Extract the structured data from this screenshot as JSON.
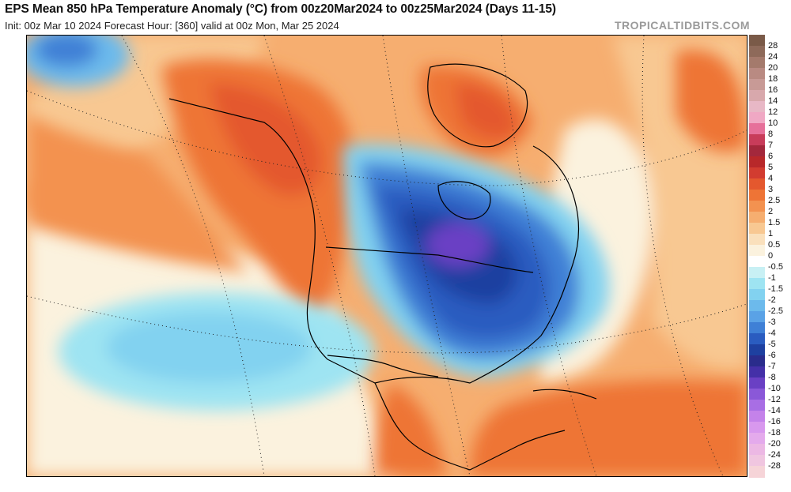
{
  "header": {
    "title": "EPS Mean 850 hPa Temperature Anomaly (°C) from 00z20Mar2024 to 00z25Mar2024 (Days 11-15)",
    "subtitle": "Init: 00z Mar 10 2024   Forecast Hour: [360]   valid at 00z Mon, Mar 25 2024",
    "brand": "TROPICALTIDBITS.COM"
  },
  "colorbar": {
    "labels": [
      "28",
      "24",
      "20",
      "18",
      "16",
      "14",
      "12",
      "10",
      "8",
      "7",
      "6",
      "5",
      "4",
      "3",
      "2.5",
      "2",
      "1.5",
      "1",
      "0.5",
      "0",
      "-0.5",
      "-1",
      "-1.5",
      "-2",
      "-2.5",
      "-3",
      "-4",
      "-5",
      "-6",
      "-7",
      "-8",
      "-10",
      "-12",
      "-14",
      "-16",
      "-18",
      "-20",
      "-24",
      "-28"
    ],
    "colors": [
      "#7a5a48",
      "#8e6a5a",
      "#a47a6c",
      "#b98a82",
      "#c89a96",
      "#d8a8ac",
      "#e8b8c6",
      "#f0a8c4",
      "#e6709a",
      "#c83c5a",
      "#a3283c",
      "#b8282a",
      "#d23c30",
      "#e4582e",
      "#ee7436",
      "#f39250",
      "#f6ae70",
      "#f8c892",
      "#fae0bc",
      "#fbf2de",
      "#ffffff",
      "#c8f0f4",
      "#9ee4f2",
      "#82d2f0",
      "#6cbaec",
      "#5aa2e6",
      "#3f80d6",
      "#2a5cc0",
      "#1e40a0",
      "#2a2c8c",
      "#4430a8",
      "#6a40c4",
      "#8a58d8",
      "#a86ee4",
      "#c482ea",
      "#d898ee",
      "#e4aaec",
      "#ecb8e4",
      "#f0c6e0",
      "#f6d4d8"
    ]
  },
  "map": {
    "region": "North America",
    "colors": {
      "warm_light": "#f6ae70",
      "warm_mid": "#ee7436",
      "warm_strong": "#e4582e",
      "warm_core": "#d23c30",
      "neutral": "#fbf2de",
      "cool_light": "#9ee4f2",
      "cool_mid": "#6cbaec",
      "cold": "#3f80d6",
      "cold_strong": "#2a5cc0",
      "cold_core": "#1e40a0",
      "cold_extreme": "#6a40c4"
    }
  }
}
